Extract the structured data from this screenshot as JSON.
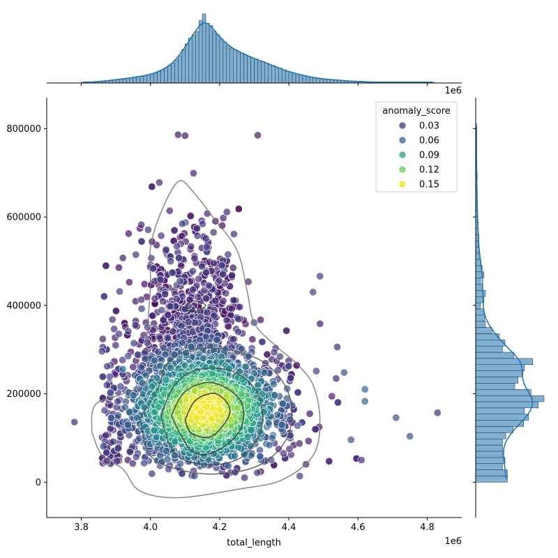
{
  "chart_data": {
    "type": "scatter",
    "subtype": "jointplot",
    "xlabel": "total_length",
    "ylabel": "",
    "x_offset_label": "1e6",
    "hist_offset_label": "1e6",
    "xlim": [
      3.7,
      4.9
    ],
    "ylim": [
      -80000,
      870000
    ],
    "x_ticks": [
      3.8,
      4.0,
      4.2,
      4.4,
      4.6,
      4.8
    ],
    "x_tick_labels": [
      "3.8",
      "4.0",
      "4.2",
      "4.4",
      "4.6",
      "4.8"
    ],
    "y_ticks": [
      0,
      200000,
      400000,
      600000,
      800000
    ],
    "y_tick_labels": [
      "0",
      "200000",
      "400000",
      "600000",
      "800000"
    ],
    "grid": false,
    "legend": {
      "title": "anomaly_score",
      "position": "top-right",
      "entries": [
        {
          "label": "0.03",
          "color": "#46327e"
        },
        {
          "label": "0.06",
          "color": "#365c8d"
        },
        {
          "label": "0.09",
          "color": "#1fa187"
        },
        {
          "label": "0.12",
          "color": "#6ece58"
        },
        {
          "label": "0.15",
          "color": "#e7e419"
        }
      ]
    },
    "color_map": "viridis",
    "hue_range": [
      0.0,
      0.16
    ],
    "point_alpha": 0.7,
    "outliers": [
      {
        "x": 3.78,
        "y": 136000,
        "score": 0.02
      },
      {
        "x": 4.71,
        "y": 146000,
        "score": 0.04
      },
      {
        "x": 4.75,
        "y": 104000,
        "score": 0.04
      },
      {
        "x": 4.83,
        "y": 157000,
        "score": 0.02
      },
      {
        "x": 4.08,
        "y": 786000,
        "score": 0.01
      },
      {
        "x": 4.1,
        "y": 784000,
        "score": 0.01
      },
      {
        "x": 4.31,
        "y": 785000,
        "score": 0.01
      },
      {
        "x": 3.89,
        "y": 368000,
        "score": 0.02
      },
      {
        "x": 4.49,
        "y": 466000,
        "score": 0.03
      },
      {
        "x": 4.56,
        "y": 248000,
        "score": 0.04
      },
      {
        "x": 4.62,
        "y": 210000,
        "score": 0.05
      },
      {
        "x": 4.62,
        "y": 183000,
        "score": 0.05
      },
      {
        "x": 4.61,
        "y": 50000,
        "score": 0.02
      },
      {
        "x": 4.58,
        "y": 96000,
        "score": 0.04
      },
      {
        "x": 3.92,
        "y": 256000,
        "score": 0.06
      },
      {
        "x": 3.86,
        "y": 296000,
        "score": 0.03
      },
      {
        "x": 4.54,
        "y": 306000,
        "score": 0.02
      },
      {
        "x": 4.47,
        "y": 430000,
        "score": 0.03
      }
    ],
    "cluster_points": {
      "count": 3200,
      "main_center": {
        "x": 4.15,
        "y": 160000
      },
      "upper_center": {
        "x": 4.12,
        "y": 420000
      },
      "y_floor": 10000
    },
    "kde_levels": [
      {
        "level": 1,
        "contour": [
          [
            3.83,
            115000
          ],
          [
            3.84,
            175000
          ],
          [
            3.92,
            200000
          ],
          [
            3.99,
            230000
          ],
          [
            3.99,
            330000
          ],
          [
            4.0,
            445000
          ],
          [
            4.0,
            530000
          ],
          [
            4.03,
            610000
          ],
          [
            4.08,
            680000
          ],
          [
            4.12,
            660000
          ],
          [
            4.18,
            600000
          ],
          [
            4.25,
            525000
          ],
          [
            4.28,
            430000
          ],
          [
            4.3,
            360000
          ],
          [
            4.36,
            310000
          ],
          [
            4.42,
            270000
          ],
          [
            4.47,
            220000
          ],
          [
            4.49,
            140000
          ],
          [
            4.47,
            60000
          ],
          [
            4.38,
            5000
          ],
          [
            4.26,
            -15000
          ],
          [
            4.08,
            -35000
          ],
          [
            3.97,
            -20000
          ],
          [
            3.92,
            30000
          ],
          [
            3.86,
            60000
          ],
          [
            3.83,
            115000
          ]
        ]
      },
      {
        "level": 2,
        "contour": [
          [
            3.97,
            145000
          ],
          [
            4.02,
            210000
          ],
          [
            4.05,
            270000
          ],
          [
            4.12,
            300000
          ],
          [
            4.22,
            300000
          ],
          [
            4.33,
            270000
          ],
          [
            4.4,
            200000
          ],
          [
            4.4,
            110000
          ],
          [
            4.33,
            45000
          ],
          [
            4.22,
            20000
          ],
          [
            4.1,
            25000
          ],
          [
            4.0,
            60000
          ],
          [
            3.97,
            145000
          ]
        ]
      },
      {
        "level": 3,
        "contour": [
          [
            4.03,
            150000
          ],
          [
            4.07,
            220000
          ],
          [
            4.14,
            255000
          ],
          [
            4.24,
            250000
          ],
          [
            4.31,
            200000
          ],
          [
            4.32,
            120000
          ],
          [
            4.26,
            55000
          ],
          [
            4.16,
            40000
          ],
          [
            4.07,
            65000
          ],
          [
            4.03,
            150000
          ]
        ]
      },
      {
        "level": 4,
        "contour": [
          [
            4.06,
            150000
          ],
          [
            4.1,
            205000
          ],
          [
            4.18,
            225000
          ],
          [
            4.26,
            185000
          ],
          [
            4.26,
            120000
          ],
          [
            4.19,
            70000
          ],
          [
            4.12,
            70000
          ],
          [
            4.06,
            150000
          ]
        ]
      },
      {
        "level": 5,
        "contour": [
          [
            4.1,
            140000
          ],
          [
            4.13,
            185000
          ],
          [
            4.19,
            200000
          ],
          [
            4.23,
            160000
          ],
          [
            4.18,
            105000
          ],
          [
            4.12,
            110000
          ],
          [
            4.1,
            140000
          ]
        ]
      },
      {
        "level": 6,
        "contour": [
          [
            4.1,
            395000
          ],
          [
            4.12,
            410000
          ],
          [
            4.16,
            400000
          ],
          [
            4.12,
            385000
          ],
          [
            4.1,
            395000
          ]
        ]
      }
    ],
    "x_marginal_hist": {
      "bin_start": 3.8,
      "bin_width": 0.01,
      "counts": [
        1,
        1,
        1,
        1,
        2,
        2,
        2,
        3,
        3,
        4,
        4,
        5,
        5,
        6,
        6,
        7,
        8,
        8,
        9,
        10,
        11,
        12,
        14,
        16,
        18,
        21,
        24,
        28,
        33,
        40,
        47,
        54,
        58,
        62,
        75,
        83,
        72,
        69,
        62,
        58,
        53,
        49,
        45,
        42,
        40,
        38,
        36,
        34,
        32,
        30,
        29,
        27,
        26,
        24,
        22,
        21,
        19,
        18,
        16,
        14,
        13,
        12,
        11,
        10,
        9,
        8,
        7,
        6,
        6,
        5,
        5,
        4,
        4,
        4,
        3,
        3,
        3,
        2,
        2,
        2,
        2,
        2,
        1,
        1,
        1,
        1,
        1,
        1,
        1,
        1,
        1,
        1,
        1,
        1,
        1,
        1,
        1,
        1,
        1,
        1,
        1,
        1
      ],
      "kde_peak": 4.1
    },
    "y_marginal_hist": {
      "bin_start": 0,
      "bin_width": 14000,
      "counts": [
        39,
        39,
        33,
        36,
        33,
        33,
        33,
        37,
        46,
        59,
        65,
        60,
        77,
        84,
        68,
        48,
        52,
        58,
        60,
        70,
        47,
        33,
        36,
        29,
        20,
        12,
        11,
        10,
        6,
        10,
        12,
        7,
        6,
        10,
        8,
        6,
        5,
        4,
        3,
        4,
        3,
        3,
        2,
        2,
        2,
        2,
        2,
        1,
        1,
        2,
        1,
        1,
        1,
        1,
        1,
        1,
        1,
        1
      ],
      "kde_peak": 150000
    }
  },
  "colors": {
    "hist_fill": "#7fafd3",
    "hist_edge": "#1f2c3a",
    "kde_line": "#1f77b4",
    "contour": "#000000"
  }
}
